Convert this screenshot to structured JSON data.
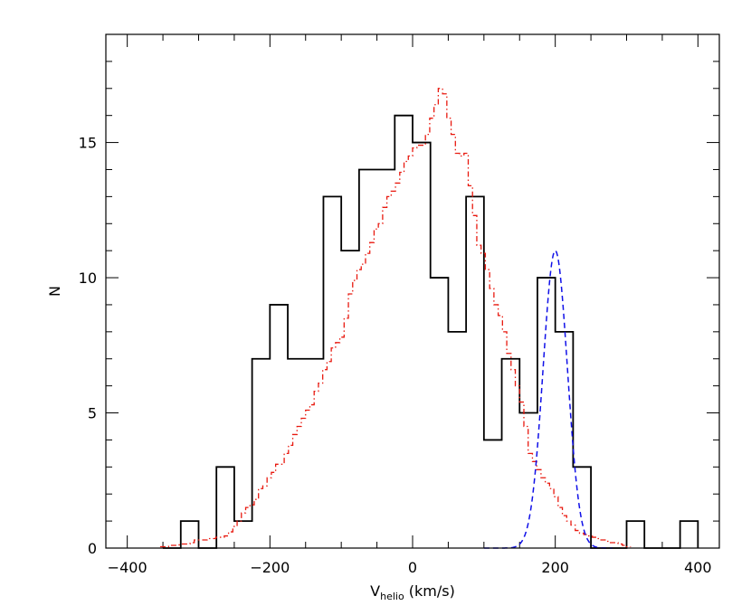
{
  "chart_data": {
    "type": "histogram",
    "xlabel_main": "V",
    "xlabel_sub": "helio",
    "xlabel_unit": " (km/s)",
    "ylabel": "N",
    "xlim": [
      -430,
      430
    ],
    "ylim": [
      0,
      19
    ],
    "x_ticks": [
      -400,
      -200,
      0,
      200,
      400
    ],
    "x_tick_labels": [
      "−400",
      "−200",
      "0",
      "200",
      "400"
    ],
    "y_ticks": [
      0,
      5,
      10,
      15
    ],
    "y_tick_labels": [
      "0",
      "5",
      "10",
      "15"
    ],
    "x_minor_step": 50,
    "y_minor_step": 1,
    "grid": false,
    "series": [
      {
        "style": "solid",
        "color": "#000000",
        "bin_edges": [
          -350,
          -325,
          -300,
          -275,
          -250,
          -225,
          -200,
          -175,
          -150,
          -125,
          -100,
          -75,
          -50,
          -25,
          0,
          25,
          50,
          75,
          100,
          125,
          150,
          175,
          200,
          225,
          250,
          275,
          300,
          325,
          350,
          375,
          400
        ],
        "counts": [
          0,
          1,
          0,
          3,
          1,
          7,
          9,
          7,
          7,
          13,
          11,
          14,
          14,
          16,
          15,
          10,
          8,
          13,
          4,
          7,
          5,
          10,
          8,
          3,
          0,
          0,
          1,
          0,
          0,
          1
        ]
      },
      {
        "style": "dash-dot",
        "color": "#e8190f",
        "bin_width": 6,
        "start_x": -354,
        "counts": [
          0.05,
          0.05,
          0.1,
          0.1,
          0.12,
          0.15,
          0.15,
          0.2,
          0.3,
          0.3,
          0.3,
          0.35,
          0.35,
          0.4,
          0.4,
          0.45,
          0.6,
          0.8,
          1.0,
          1.3,
          1.5,
          1.6,
          1.8,
          2.2,
          2.3,
          2.6,
          2.8,
          3.1,
          3.1,
          3.5,
          3.8,
          4.2,
          4.5,
          4.8,
          5.1,
          5.3,
          5.8,
          6.1,
          6.6,
          6.9,
          7.4,
          7.6,
          7.8,
          8.5,
          9.4,
          9.9,
          10.3,
          10.5,
          10.9,
          11.3,
          11.8,
          12.0,
          12.6,
          13.0,
          13.2,
          13.5,
          13.9,
          14.3,
          14.5,
          14.8,
          14.9,
          14.9,
          15.3,
          15.9,
          16.4,
          17.0,
          16.8,
          15.9,
          15.3,
          14.6,
          14.5,
          14.6,
          13.4,
          12.3,
          11.2,
          10.9,
          10.3,
          9.6,
          9.0,
          8.6,
          8.0,
          7.2,
          6.6,
          6.0,
          5.4,
          4.5,
          3.5,
          3.2,
          2.9,
          2.6,
          2.4,
          2.2,
          1.9,
          1.5,
          1.2,
          1.0,
          0.85,
          0.65,
          0.55,
          0.5,
          0.45,
          0.4,
          0.35,
          0.3,
          0.25,
          0.2,
          0.2,
          0.15,
          0.1,
          0.05
        ]
      },
      {
        "style": "dashed",
        "color": "#1010e8",
        "type": "gaussian",
        "mean": 200,
        "sigma": 17,
        "amplitude": 11,
        "x_range": [
          100,
          280
        ]
      }
    ]
  }
}
